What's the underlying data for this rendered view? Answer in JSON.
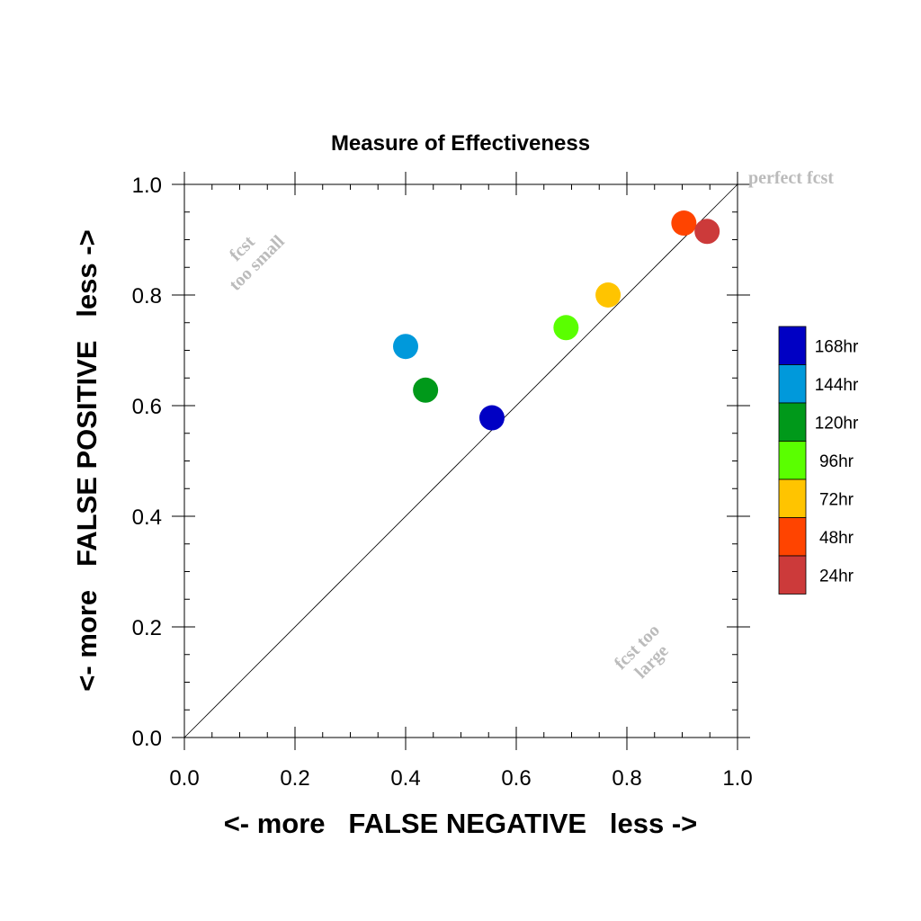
{
  "chart_data": {
    "type": "scatter",
    "title": "Measure of Effectiveness",
    "xlabel": "<- more   FALSE NEGATIVE   less ->",
    "ylabel": "<- more   FALSE POSITIVE   less ->",
    "xlim": [
      0,
      1
    ],
    "ylim": [
      0,
      1
    ],
    "xticks": [
      "0.0",
      "0.2",
      "0.4",
      "0.6",
      "0.8",
      "1.0"
    ],
    "yticks": [
      "0.0",
      "0.2",
      "0.4",
      "0.6",
      "0.8",
      "1.0"
    ],
    "grid": false,
    "diagonal_line": true,
    "legend_position": "right",
    "annotations": {
      "perfect": "perfect fcst",
      "too_small_line1": "fcst",
      "too_small_line2": "too small",
      "too_large_line1": "fcst too",
      "too_large_line2": "large"
    },
    "series": [
      {
        "name": "168hr",
        "color": "#0000c4",
        "x": 0.556,
        "y": 0.578
      },
      {
        "name": "144hr",
        "color": "#0099db",
        "x": 0.4,
        "y": 0.707
      },
      {
        "name": "120hr",
        "color": "#00991a",
        "x": 0.436,
        "y": 0.628
      },
      {
        "name": "96hr",
        "color": "#5aff00",
        "x": 0.69,
        "y": 0.741
      },
      {
        "name": "72hr",
        "color": "#ffc400",
        "x": 0.766,
        "y": 0.8
      },
      {
        "name": "48hr",
        "color": "#ff4400",
        "x": 0.903,
        "y": 0.93
      },
      {
        "name": "24hr",
        "color": "#cc3a3a",
        "x": 0.945,
        "y": 0.915
      }
    ]
  }
}
